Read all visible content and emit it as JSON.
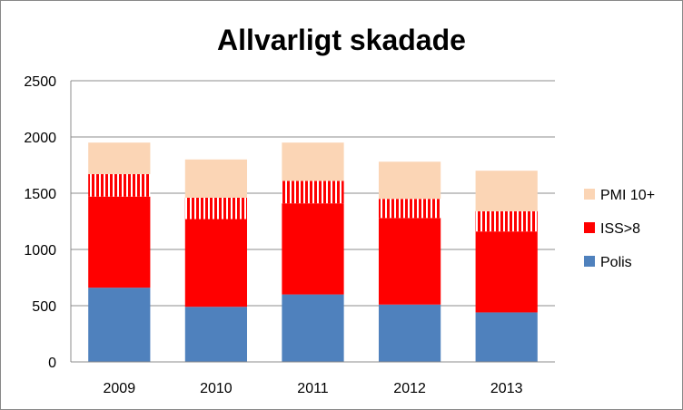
{
  "chart_data": {
    "type": "bar",
    "stacked": true,
    "title": "Allvarligt skadade",
    "xlabel": "",
    "ylabel": "",
    "categories": [
      "2009",
      "2010",
      "2011",
      "2012",
      "2013"
    ],
    "ylim": [
      0,
      2500
    ],
    "yticks": [
      "0",
      "500",
      "1000",
      "1500",
      "2000",
      "2500"
    ],
    "grid": true,
    "legend_position": "right",
    "series": [
      {
        "name": "Polis",
        "values": [
          660,
          490,
          600,
          510,
          440
        ],
        "color": "#4f81bd",
        "pattern": "solid"
      },
      {
        "name": "ISS>8",
        "values": [
          810,
          780,
          810,
          770,
          720
        ],
        "color": "#ff0000",
        "pattern": "solid"
      },
      {
        "name": "",
        "values": [
          200,
          190,
          200,
          170,
          180
        ],
        "color": "#ff0000",
        "pattern": "vertical-stripes"
      },
      {
        "name": "PMI 10+",
        "values": [
          280,
          340,
          340,
          330,
          360
        ],
        "color": "#fbd5b5",
        "pattern": "solid"
      }
    ]
  }
}
